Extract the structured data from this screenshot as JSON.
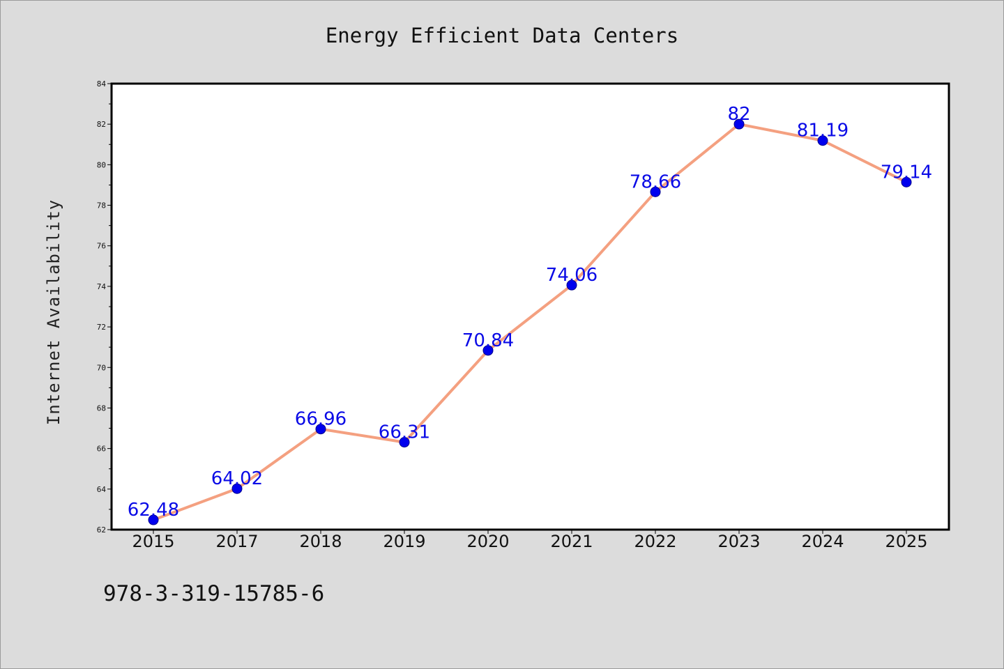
{
  "chart_data": {
    "type": "line",
    "title": "Energy Efficient Data Centers",
    "xlabel": "",
    "ylabel": "Internet Availability",
    "categories": [
      "2015",
      "2017",
      "2018",
      "2019",
      "2020",
      "2021",
      "2022",
      "2023",
      "2024",
      "2025"
    ],
    "series": [
      {
        "values": [
          62.48,
          64.02,
          66.96,
          66.31,
          70.84,
          74.06,
          78.66,
          82,
          81.19,
          79.14
        ],
        "data_labels": [
          "62.48",
          "64.02",
          "66.96",
          "66.31",
          "70.84",
          "74.06",
          "78.66",
          "82",
          "81.19",
          "79.14"
        ],
        "line_color": "#f4a080",
        "marker_color": "#0000ee"
      }
    ],
    "ylim": [
      62,
      84
    ],
    "yticks": [
      "62",
      "64",
      "66",
      "68",
      "70",
      "72",
      "74",
      "76",
      "78",
      "80",
      "82",
      "84"
    ],
    "grid": false,
    "legend": "none"
  },
  "footer": {
    "code": "978-3-319-15785-6"
  }
}
